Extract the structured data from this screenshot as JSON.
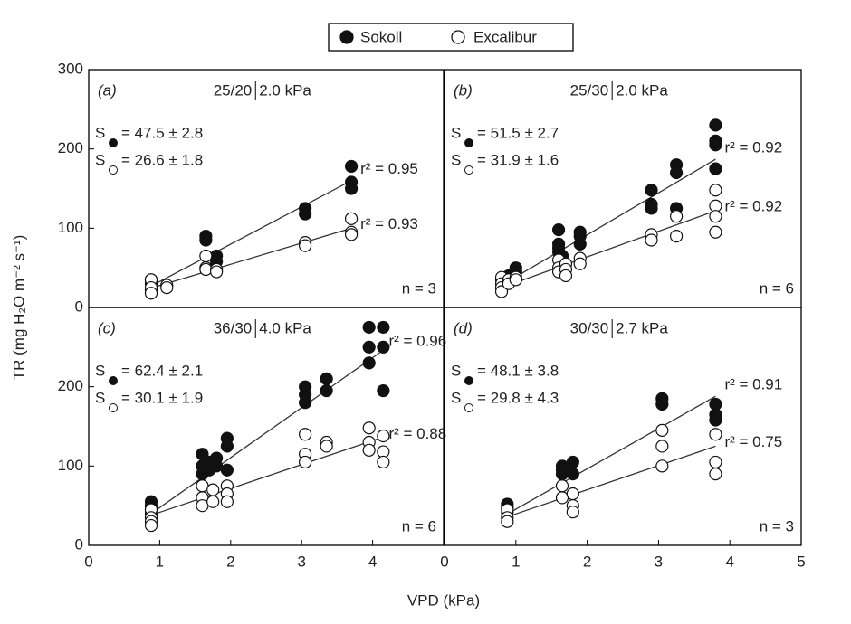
{
  "legend": [
    {
      "name": "Sokoll",
      "marker": "filled"
    },
    {
      "name": "Excalibur",
      "marker": "open"
    }
  ],
  "xlabel": "VPD (kPa)",
  "ylabel": "TR (mg H₂O m⁻² s⁻¹)",
  "slope_symbol": "S",
  "chart_data": [
    {
      "type": "scatter",
      "panel_label": "(a)",
      "condition": "25/20",
      "vpd_label": "2.0 kPa",
      "n_label": "n = 3",
      "xlim": [
        0,
        5
      ],
      "ylim": [
        0,
        300
      ],
      "yticks": [
        0,
        100,
        200,
        300
      ],
      "series": [
        {
          "marker": "filled",
          "slope_label": "= 47.5 ± 2.8",
          "r2_label": "r² = 0.95",
          "x": [
            0.88,
            0.88,
            0.88,
            1.65,
            1.65,
            1.8,
            1.8,
            3.05,
            3.05,
            3.7,
            3.7,
            3.7
          ],
          "y": [
            30,
            22,
            35,
            90,
            85,
            65,
            58,
            125,
            118,
            178,
            158,
            150
          ],
          "fit": {
            "x": [
              0.9,
              3.7
            ],
            "y": [
              28,
              160
            ]
          }
        },
        {
          "marker": "open",
          "slope_label": "= 26.6 ± 1.8",
          "r2_label": "r² = 0.93",
          "x": [
            0.88,
            0.88,
            0.88,
            1.1,
            1.1,
            1.65,
            1.65,
            1.65,
            1.8,
            1.8,
            3.05,
            3.05,
            3.7,
            3.7,
            3.7
          ],
          "y": [
            35,
            25,
            18,
            28,
            25,
            65,
            50,
            48,
            48,
            45,
            82,
            78,
            112,
            95,
            92
          ],
          "fit": {
            "x": [
              0.9,
              3.7
            ],
            "y": [
              25,
              100
            ]
          }
        }
      ]
    },
    {
      "type": "scatter",
      "panel_label": "(b)",
      "condition": "25/30",
      "vpd_label": "2.0 kPa",
      "n_label": "n = 6",
      "xlim": [
        0,
        5
      ],
      "ylim": [
        0,
        300
      ],
      "series": [
        {
          "marker": "filled",
          "slope_label": "= 51.5 ± 2.7",
          "r2_label": "r² = 0.92",
          "x": [
            0.8,
            0.8,
            0.9,
            1.0,
            1.0,
            1.6,
            1.6,
            1.6,
            1.6,
            1.65,
            1.9,
            1.9,
            1.9,
            2.9,
            2.9,
            2.9,
            3.25,
            3.25,
            3.25,
            3.8,
            3.8,
            3.8,
            3.8
          ],
          "y": [
            25,
            35,
            40,
            50,
            45,
            98,
            80,
            75,
            70,
            65,
            95,
            90,
            80,
            148,
            130,
            125,
            180,
            170,
            125,
            230,
            210,
            205,
            175
          ],
          "fit": {
            "x": [
              0.8,
              3.8
            ],
            "y": [
              28,
              187
            ]
          }
        },
        {
          "marker": "open",
          "slope_label": "= 31.9 ± 1.6",
          "r2_label": "r² = 0.92",
          "x": [
            0.8,
            0.8,
            0.8,
            0.8,
            0.9,
            0.9,
            1.0,
            1.0,
            1.6,
            1.6,
            1.6,
            1.7,
            1.7,
            1.7,
            1.9,
            1.9,
            2.9,
            2.9,
            3.25,
            3.25,
            3.8,
            3.8,
            3.8,
            3.8
          ],
          "y": [
            38,
            30,
            25,
            20,
            35,
            30,
            38,
            35,
            60,
            50,
            45,
            55,
            48,
            40,
            62,
            55,
            92,
            85,
            115,
            90,
            148,
            128,
            115,
            95
          ],
          "fit": {
            "x": [
              0.8,
              3.8
            ],
            "y": [
              25,
              122
            ]
          }
        }
      ]
    },
    {
      "type": "scatter",
      "panel_label": "(c)",
      "condition": "36/30",
      "vpd_label": "4.0 kPa",
      "n_label": "n = 6",
      "xlim": [
        0,
        5
      ],
      "ylim": [
        0,
        300
      ],
      "xticks": [
        0,
        1,
        2,
        3,
        4
      ],
      "yticks": [
        0,
        100,
        200
      ],
      "series": [
        {
          "marker": "filled",
          "slope_label": "= 62.4 ± 2.1",
          "r2_label": "r² = 0.96",
          "x": [
            0.88,
            0.88,
            0.88,
            0.88,
            1.6,
            1.6,
            1.6,
            1.7,
            1.7,
            1.8,
            1.8,
            1.95,
            1.95,
            1.95,
            3.05,
            3.05,
            3.05,
            3.35,
            3.35,
            3.95,
            3.95,
            3.95,
            4.15,
            4.15,
            4.15
          ],
          "y": [
            55,
            50,
            45,
            40,
            115,
            100,
            90,
            105,
            95,
            110,
            100,
            135,
            125,
            95,
            200,
            190,
            180,
            210,
            195,
            275,
            250,
            230,
            275,
            250,
            195
          ],
          "fit": {
            "x": [
              0.88,
              4.1
            ],
            "y": [
              40,
              243
            ]
          }
        },
        {
          "marker": "open",
          "slope_label": "= 30.1 ± 1.9",
          "r2_label": "r² = 0.88",
          "x": [
            0.88,
            0.88,
            0.88,
            0.88,
            1.6,
            1.6,
            1.6,
            1.75,
            1.75,
            1.95,
            1.95,
            1.95,
            3.05,
            3.05,
            3.05,
            3.35,
            3.35,
            3.95,
            3.95,
            3.95,
            4.15,
            4.15,
            4.15
          ],
          "y": [
            45,
            35,
            30,
            25,
            75,
            60,
            50,
            70,
            55,
            75,
            65,
            55,
            140,
            115,
            105,
            130,
            125,
            148,
            130,
            120,
            138,
            118,
            105
          ],
          "fit": {
            "x": [
              0.88,
              4.1
            ],
            "y": [
              38,
              135
            ]
          }
        }
      ]
    },
    {
      "type": "scatter",
      "panel_label": "(d)",
      "condition": "30/30",
      "vpd_label": "2.7 kPa",
      "n_label": "n = 3",
      "xlim": [
        0,
        5
      ],
      "ylim": [
        0,
        300
      ],
      "xticks": [
        0,
        1,
        2,
        3,
        4,
        5
      ],
      "series": [
        {
          "marker": "filled",
          "slope_label": "= 48.1 ± 3.8",
          "r2_label": "r² = 0.91",
          "x": [
            0.88,
            0.88,
            0.88,
            1.65,
            1.65,
            1.65,
            1.8,
            1.8,
            3.05,
            3.05,
            3.8,
            3.8,
            3.8
          ],
          "y": [
            52,
            48,
            42,
            100,
            95,
            90,
            105,
            90,
            185,
            178,
            178,
            165,
            158
          ],
          "fit": {
            "x": [
              0.85,
              3.8
            ],
            "y": [
              38,
              188
            ]
          }
        },
        {
          "marker": "open",
          "slope_label": "= 29.8 ± 4.3",
          "r2_label": "r² = 0.75",
          "x": [
            0.88,
            0.88,
            0.88,
            1.65,
            1.65,
            1.8,
            1.8,
            1.8,
            3.05,
            3.05,
            3.05,
            3.8,
            3.8,
            3.8
          ],
          "y": [
            45,
            35,
            30,
            75,
            60,
            65,
            50,
            42,
            145,
            125,
            100,
            140,
            105,
            90
          ],
          "fit": {
            "x": [
              0.85,
              3.8
            ],
            "y": [
              35,
              125
            ]
          }
        }
      ]
    }
  ]
}
